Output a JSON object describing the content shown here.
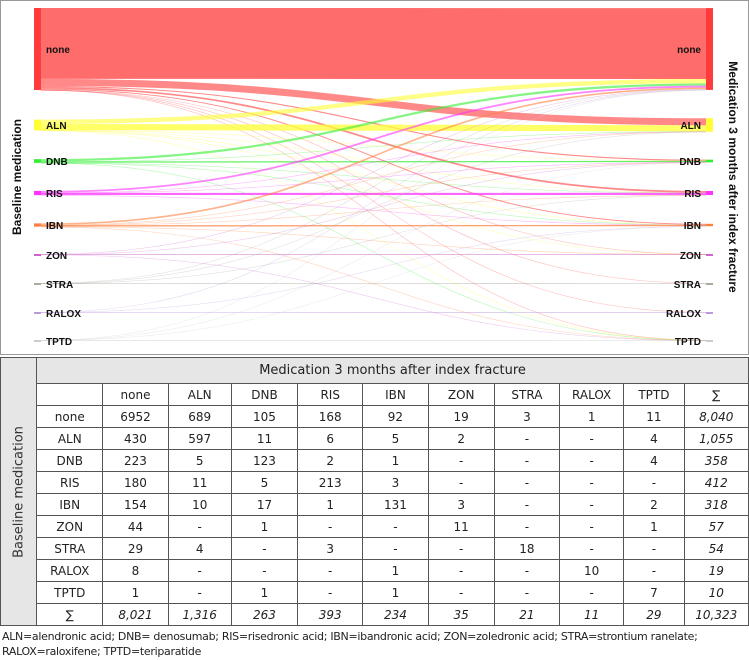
{
  "sankey": {
    "left_title": "Baseline medication",
    "right_title": "Medication 3 months after index fracture",
    "nodes": [
      "none",
      "ALN",
      "DNB",
      "RIS",
      "IBN",
      "ZON",
      "STRA",
      "RALOX",
      "TPTD"
    ],
    "colors": {
      "none": "#ff3b3b",
      "ALN": "#ffff33",
      "DNB": "#33ee33",
      "RIS": "#ff33ff",
      "IBN": "#ff8040",
      "ZON": "#cc66cc",
      "STRA": "#aaaaa0",
      "RALOX": "#bb99dd",
      "TPTD": "#cccccc"
    }
  },
  "table": {
    "header": "Medication 3 months after index fracture",
    "side_label": "Baseline medication",
    "columns": [
      "",
      "none",
      "ALN",
      "DNB",
      "RIS",
      "IBN",
      "ZON",
      "STRA",
      "RALOX",
      "TPTD",
      "∑"
    ],
    "rows": [
      [
        "none",
        "6952",
        "689",
        "105",
        "168",
        "92",
        "19",
        "3",
        "1",
        "11",
        "8,040"
      ],
      [
        "ALN",
        "430",
        "597",
        "11",
        "6",
        "5",
        "2",
        "-",
        "-",
        "4",
        "1,055"
      ],
      [
        "DNB",
        "223",
        "5",
        "123",
        "2",
        "1",
        "-",
        "-",
        "-",
        "4",
        "358"
      ],
      [
        "RIS",
        "180",
        "11",
        "5",
        "213",
        "3",
        "-",
        "-",
        "-",
        "-",
        "412"
      ],
      [
        "IBN",
        "154",
        "10",
        "17",
        "1",
        "131",
        "3",
        "-",
        "-",
        "2",
        "318"
      ],
      [
        "ZON",
        "44",
        "-",
        "1",
        "-",
        "-",
        "11",
        "-",
        "-",
        "1",
        "57"
      ],
      [
        "STRA",
        "29",
        "4",
        "-",
        "3",
        "-",
        "-",
        "18",
        "-",
        "-",
        "54"
      ],
      [
        "RALOX",
        "8",
        "-",
        "-",
        "-",
        "1",
        "-",
        "-",
        "10",
        "-",
        "19"
      ],
      [
        "TPTD",
        "1",
        "-",
        "1",
        "-",
        "1",
        "-",
        "-",
        "-",
        "7",
        "10"
      ]
    ],
    "sum_row": [
      "∑",
      "8,021",
      "1,316",
      "263",
      "393",
      "234",
      "35",
      "21",
      "11",
      "29",
      "10,323"
    ]
  },
  "footnote": [
    "ALN=alendronic acid; DNB= denosumab; RIS=risedronic acid; IBN=ibandronic acid; ZON=zoledronic acid; STRA=strontium ranelate;",
    "RALOX=raloxifene; TPTD=teriparatide"
  ]
}
